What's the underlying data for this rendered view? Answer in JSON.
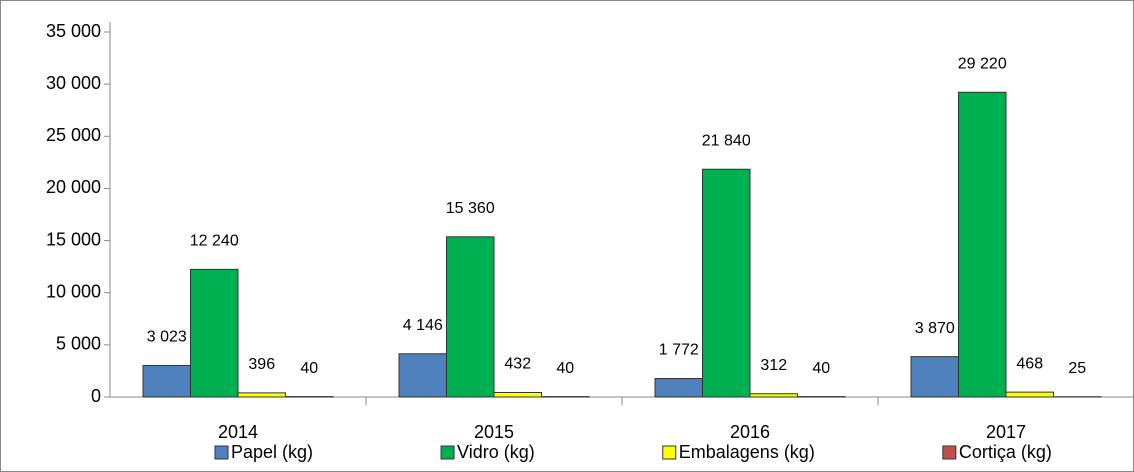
{
  "chart_data": {
    "type": "bar",
    "categories": [
      "2014",
      "2015",
      "2016",
      "2017"
    ],
    "series": [
      {
        "name": "Papel (kg)",
        "color": "#4f81bd",
        "values": [
          3023,
          4146,
          1772,
          3870
        ],
        "value_labels": [
          "3 023",
          "4 146",
          "1 772",
          "3 870"
        ]
      },
      {
        "name": "Vidro (kg)",
        "color": "#00b050",
        "values": [
          12240,
          15360,
          21840,
          29220
        ],
        "value_labels": [
          "12 240",
          "15 360",
          "21 840",
          "29 220"
        ]
      },
      {
        "name": "Embalagens (kg)",
        "color": "#ffff00",
        "values": [
          396,
          432,
          312,
          468
        ]
      },
      {
        "name": "Cortiça (kg)",
        "color": "#c0504d",
        "values": [
          40,
          40,
          40,
          25
        ]
      }
    ],
    "ylim": [
      0,
      35000
    ],
    "yticks": [
      0,
      {
        "value": 5000,
        "label": "5 000"
      },
      {
        "value": 10000,
        "label": "10 000"
      },
      {
        "value": 15000,
        "label": "15 000"
      },
      {
        "value": 20000,
        "label": "20 000"
      },
      {
        "value": 25000,
        "label": "25 000"
      },
      {
        "value": 30000,
        "label": "30 000"
      },
      {
        "value": 35000,
        "label": "35 000"
      }
    ],
    "legend": "bottom"
  }
}
